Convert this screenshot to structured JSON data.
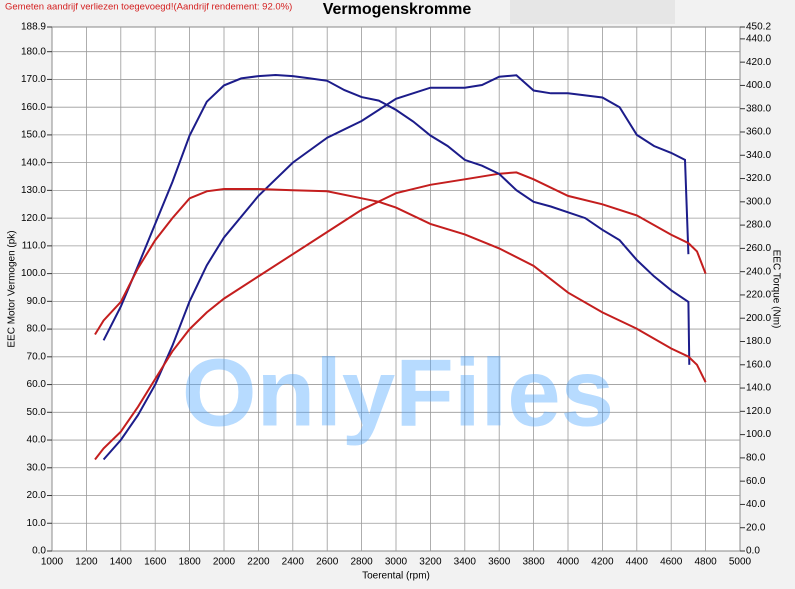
{
  "chart_data": {
    "type": "line",
    "title": "Vermogenskromme",
    "subtitle": "Gemeten aandrijf verliezen toegevoegd!(Aandrijf rendement: 92.0%)",
    "watermark": "OnlyFiles",
    "x_label": "Toerental (rpm)",
    "y_label": "EEC Motor Vermogen (pk)",
    "y2_label": "EEC Torque (Nm)",
    "grid": true,
    "xlim": [
      1000,
      5000
    ],
    "xticks": [
      1000,
      1200,
      1400,
      1600,
      1800,
      2000,
      2200,
      2400,
      2600,
      2800,
      3000,
      3200,
      3400,
      3600,
      3800,
      4000,
      4200,
      4400,
      4600,
      4800,
      5000
    ],
    "ylim": [
      0,
      188.9
    ],
    "yticks": [
      {
        "value": 0,
        "label": "0.0"
      },
      {
        "value": 10,
        "label": "10.0"
      },
      {
        "value": 20,
        "label": "20.0"
      },
      {
        "value": 30,
        "label": "30.0"
      },
      {
        "value": 40,
        "label": "40.0"
      },
      {
        "value": 50,
        "label": "50.0"
      },
      {
        "value": 60,
        "label": "60.0"
      },
      {
        "value": 70,
        "label": "70.0"
      },
      {
        "value": 80,
        "label": "80.0"
      },
      {
        "value": 90,
        "label": "90.0"
      },
      {
        "value": 100,
        "label": "100.0"
      },
      {
        "value": 110,
        "label": "110.0"
      },
      {
        "value": 120,
        "label": "120.0"
      },
      {
        "value": 130,
        "label": "130.0"
      },
      {
        "value": 140,
        "label": "140.0"
      },
      {
        "value": 150,
        "label": "150.0"
      },
      {
        "value": 160,
        "label": "160.0"
      },
      {
        "value": 170,
        "label": "170.0"
      },
      {
        "value": 180,
        "label": "180.0"
      },
      188.9
    ],
    "y2lim": [
      0,
      450.2
    ],
    "y2ticks": [
      {
        "value": 0,
        "label": "0.0"
      },
      {
        "value": 20,
        "label": "20.0"
      },
      {
        "value": 40,
        "label": "40.0"
      },
      {
        "value": 60,
        "label": "60.0"
      },
      {
        "value": 80,
        "label": "80.0"
      },
      {
        "value": 100,
        "label": "100.0"
      },
      {
        "value": 120,
        "label": "120.0"
      },
      {
        "value": 140,
        "label": "140.0"
      },
      {
        "value": 160,
        "label": "160.0"
      },
      {
        "value": 180,
        "label": "180.0"
      },
      {
        "value": 200,
        "label": "200.0"
      },
      {
        "value": 220,
        "label": "220.0"
      },
      {
        "value": 240,
        "label": "240.0"
      },
      {
        "value": 260,
        "label": "260.0"
      },
      {
        "value": 280,
        "label": "280.0"
      },
      {
        "value": 300,
        "label": "300.0"
      },
      {
        "value": 320,
        "label": "320.0"
      },
      {
        "value": 340,
        "label": "340.0"
      },
      {
        "value": 360,
        "label": "360.0"
      },
      {
        "value": 380,
        "label": "380.0"
      },
      {
        "value": 400,
        "label": "400.0"
      },
      {
        "value": 420,
        "label": "420.0"
      },
      {
        "value": 440,
        "label": "440.0"
      },
      450.2
    ],
    "series": [
      {
        "color": "#1c1c8a",
        "axis": "y",
        "x": [
          1300,
          1400,
          1500,
          1600,
          1700,
          1800,
          1900,
          2000,
          2200,
          2400,
          2600,
          2800,
          3000,
          3200,
          3400,
          3500,
          3600,
          3700,
          3800,
          3900,
          4000,
          4200,
          4300,
          4400,
          4500,
          4600,
          4680,
          4700
        ],
        "values": [
          33,
          40,
          49,
          60,
          74,
          90,
          103,
          113,
          128,
          140,
          149,
          155,
          163,
          167,
          167,
          168,
          171,
          171.5,
          166,
          165,
          165,
          163.5,
          160,
          150,
          146,
          143.5,
          141,
          107
        ]
      },
      {
        "color": "#c41e1e",
        "axis": "y",
        "x": [
          1250,
          1300,
          1400,
          1500,
          1600,
          1700,
          1800,
          1900,
          2000,
          2200,
          2400,
          2600,
          2800,
          3000,
          3200,
          3400,
          3600,
          3700,
          3800,
          4000,
          4200,
          4400,
          4600,
          4700,
          4750,
          4800
        ],
        "values": [
          33,
          37,
          43,
          52,
          62,
          72,
          80,
          86,
          91,
          99,
          107,
          115,
          123,
          129,
          132,
          134,
          136,
          136.5,
          134,
          128,
          125,
          121,
          114,
          111,
          108,
          100
        ]
      },
      {
        "color": "#1c1c8a",
        "axis": "y2",
        "x": [
          1300,
          1400,
          1500,
          1600,
          1700,
          1800,
          1900,
          2000,
          2100,
          2200,
          2300,
          2400,
          2500,
          2600,
          2700,
          2800,
          2900,
          3000,
          3100,
          3200,
          3300,
          3400,
          3500,
          3600,
          3700,
          3800,
          3900,
          4000,
          4100,
          4200,
          4300,
          4400,
          4500,
          4600,
          4700,
          4705
        ],
        "values": [
          181,
          210,
          245,
          281,
          317,
          357,
          386,
          400,
          406,
          408,
          409,
          408,
          406,
          404,
          396,
          390,
          387,
          379,
          369,
          357,
          348,
          336,
          331,
          324,
          310,
          300,
          296,
          291,
          286,
          276,
          267,
          250,
          236,
          224,
          214,
          160
        ]
      },
      {
        "color": "#c41e1e",
        "axis": "y2",
        "x": [
          1250,
          1300,
          1400,
          1500,
          1600,
          1700,
          1800,
          1900,
          2000,
          2200,
          2400,
          2600,
          2800,
          2900,
          3000,
          3200,
          3400,
          3600,
          3800,
          4000,
          4200,
          4400,
          4600,
          4700,
          4750,
          4800
        ],
        "values": [
          186,
          198,
          214,
          243,
          267,
          286,
          303,
          309,
          311,
          311,
          310,
          309,
          303,
          300,
          295,
          281,
          272,
          260,
          245,
          222,
          205,
          191,
          174,
          167,
          160,
          145
        ]
      }
    ]
  }
}
